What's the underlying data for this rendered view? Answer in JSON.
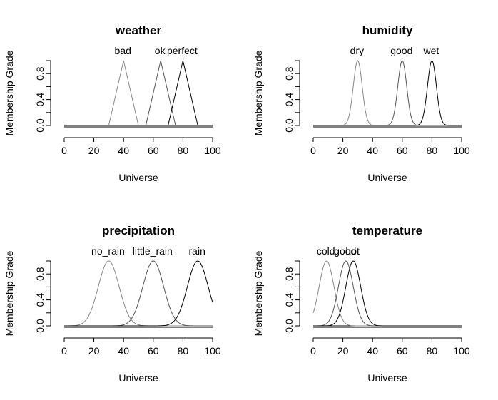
{
  "chart_data": [
    {
      "type": "line",
      "title": "weather",
      "xlabel": "Universe",
      "ylabel": "Membership Grade",
      "xlim": [
        0,
        100
      ],
      "ylim": [
        0,
        1
      ],
      "x_ticks": [
        "0",
        "20",
        "40",
        "60",
        "80",
        "100"
      ],
      "y_ticks": [
        "0.0",
        "0.4",
        "0.8"
      ],
      "sets": [
        {
          "label": "bad",
          "shape": "triangle",
          "points": [
            30,
            40,
            50
          ],
          "color": "#888888"
        },
        {
          "label": "ok",
          "shape": "triangle",
          "points": [
            55,
            65,
            75
          ],
          "color": "#555555"
        },
        {
          "label": "perfect",
          "shape": "triangle",
          "points": [
            70,
            80,
            90
          ],
          "color": "#000000"
        }
      ]
    },
    {
      "type": "line",
      "title": "humidity",
      "xlabel": "Universe",
      "ylabel": "Membership Grade",
      "xlim": [
        0,
        100
      ],
      "ylim": [
        0,
        1
      ],
      "x_ticks": [
        "0",
        "20",
        "40",
        "60",
        "80",
        "100"
      ],
      "y_ticks": [
        "0.0",
        "0.4",
        "0.8"
      ],
      "sets": [
        {
          "label": "dry",
          "shape": "gaussian",
          "mean": 30,
          "sd": 3,
          "color": "#888888"
        },
        {
          "label": "good",
          "shape": "gaussian",
          "mean": 60,
          "sd": 3,
          "color": "#555555"
        },
        {
          "label": "wet",
          "shape": "gaussian",
          "mean": 80,
          "sd": 3,
          "color": "#000000"
        }
      ]
    },
    {
      "type": "line",
      "title": "precipitation",
      "xlabel": "Universe",
      "ylabel": "Membership Grade",
      "xlim": [
        0,
        100
      ],
      "ylim": [
        0,
        1
      ],
      "x_ticks": [
        "0",
        "20",
        "40",
        "60",
        "80",
        "100"
      ],
      "y_ticks": [
        "0.0",
        "0.4",
        "0.8"
      ],
      "sets": [
        {
          "label": "no_rain",
          "shape": "gaussian",
          "mean": 30,
          "sd": 7,
          "color": "#888888"
        },
        {
          "label": "little_rain",
          "shape": "gaussian",
          "mean": 60,
          "sd": 7,
          "color": "#555555"
        },
        {
          "label": "rain",
          "shape": "gaussian",
          "mean": 90,
          "sd": 7,
          "color": "#000000"
        }
      ]
    },
    {
      "type": "line",
      "title": "temperature",
      "xlabel": "Universe",
      "ylabel": "Membership Grade",
      "xlim": [
        0,
        100
      ],
      "ylim": [
        0,
        1
      ],
      "x_ticks": [
        "0",
        "20",
        "40",
        "60",
        "80",
        "100"
      ],
      "y_ticks": [
        "0.0",
        "0.4",
        "0.8"
      ],
      "sets": [
        {
          "label": "cold",
          "shape": "gaussian",
          "mean": 9,
          "sd": 5,
          "color": "#888888"
        },
        {
          "label": "good",
          "shape": "gaussian",
          "mean": 22,
          "sd": 5,
          "color": "#555555"
        },
        {
          "label": "hot",
          "shape": "gaussian",
          "mean": 27,
          "sd": 5,
          "color": "#000000"
        }
      ]
    }
  ]
}
